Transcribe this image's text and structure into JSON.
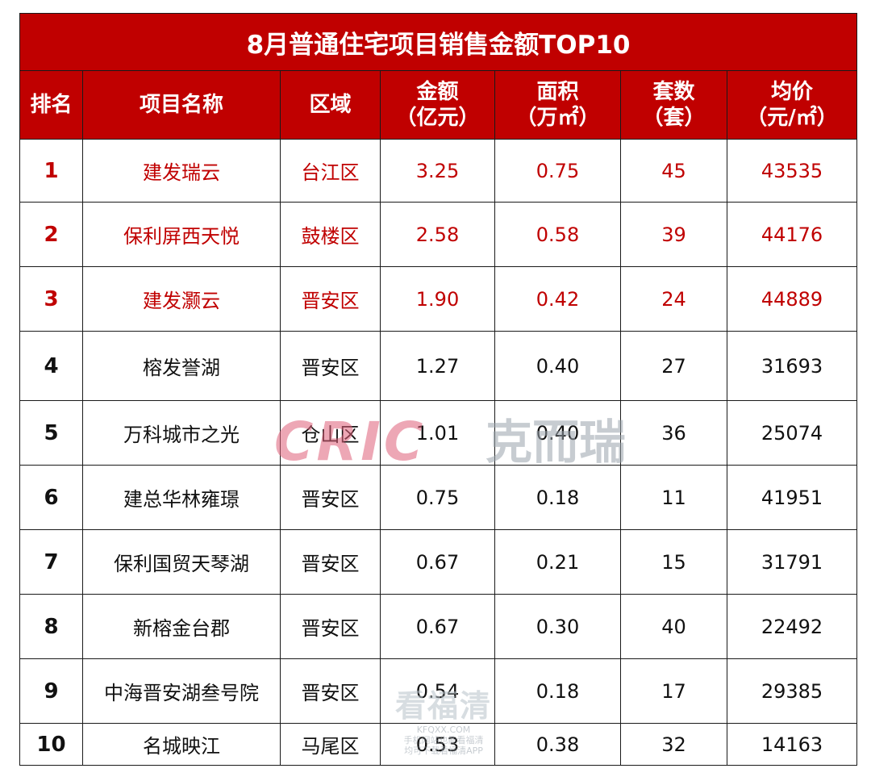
{
  "title": "8月普通住宅项目销售金额TOP10",
  "headers": {
    "rank": "排名",
    "name": "项目名称",
    "district": "区域",
    "amount_l1": "金额",
    "amount_l2": "（亿元）",
    "area_l1": "面积",
    "area_l2": "（万㎡）",
    "units_l1": "套数",
    "units_l2": "（套）",
    "price_l1": "均价",
    "price_l2": "（元/㎡）"
  },
  "rows": [
    {
      "rank": "1",
      "name": "建发瑞云",
      "district": "台江区",
      "amount": "3.25",
      "area": "0.75",
      "units": "45",
      "price": "43535"
    },
    {
      "rank": "2",
      "name": "保利屏西天悦",
      "district": "鼓楼区",
      "amount": "2.58",
      "area": "0.58",
      "units": "39",
      "price": "44176"
    },
    {
      "rank": "3",
      "name": "建发灏云",
      "district": "晋安区",
      "amount": "1.90",
      "area": "0.42",
      "units": "24",
      "price": "44889"
    },
    {
      "rank": "4",
      "name": "榕发誉湖",
      "district": "晋安区",
      "amount": "1.27",
      "area": "0.40",
      "units": "27",
      "price": "31693"
    },
    {
      "rank": "5",
      "name": "万科城市之光",
      "district": "仓山区",
      "amount": "1.01",
      "area": "0.40",
      "units": "36",
      "price": "25074"
    },
    {
      "rank": "6",
      "name": "建总华林雍璟",
      "district": "晋安区",
      "amount": "0.75",
      "area": "0.18",
      "units": "11",
      "price": "41951"
    },
    {
      "rank": "7",
      "name": "保利国贸天琴湖",
      "district": "晋安区",
      "amount": "0.67",
      "area": "0.21",
      "units": "15",
      "price": "31791"
    },
    {
      "rank": "8",
      "name": "新榕金台郡",
      "district": "晋安区",
      "amount": "0.67",
      "area": "0.30",
      "units": "40",
      "price": "22492"
    },
    {
      "rank": "9",
      "name": "中海晋安湖叁号院",
      "district": "晋安区",
      "amount": "0.54",
      "area": "0.18",
      "units": "17",
      "price": "29385"
    },
    {
      "rank": "10",
      "name": "名城映江",
      "district": "马尾区",
      "amount": "0.53",
      "area": "0.38",
      "units": "32",
      "price": "14163"
    }
  ],
  "watermark": {
    "logo_text": "CRIC",
    "logo_cn": "克而瑞",
    "site_cn": "看福清",
    "site_url": "KFQXX.COM",
    "site_line1": "手机网站也能看福清",
    "site_line2": "均可下载看福清APP"
  },
  "colors": {
    "accent": "#c00000",
    "highlight_text": "#c00000"
  }
}
